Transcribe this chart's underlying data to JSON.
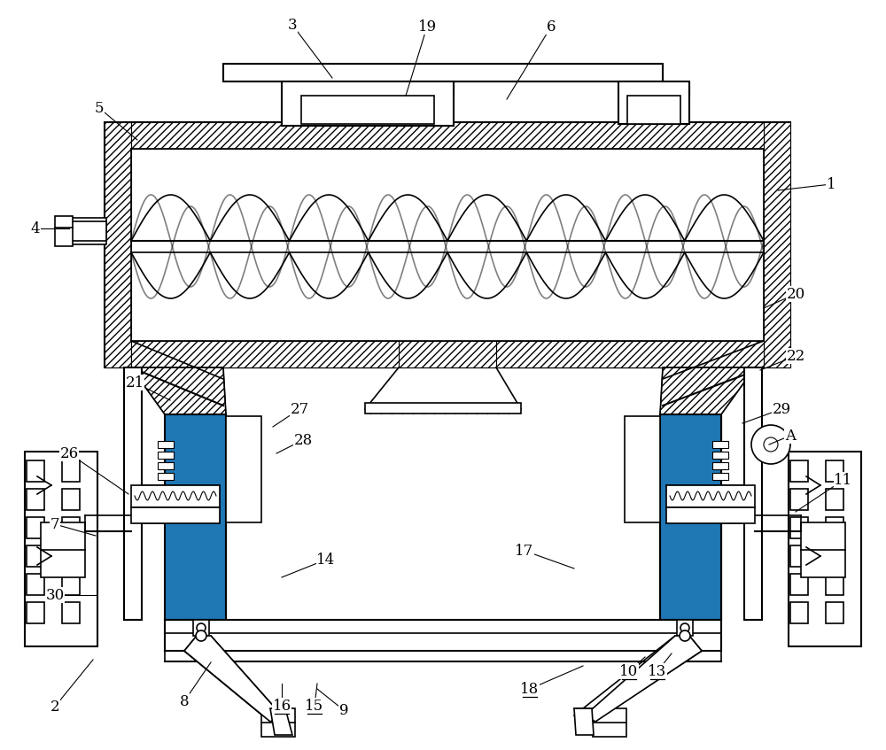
{
  "background_color": "#ffffff",
  "line_color": "#000000",
  "figsize": [
    10.0,
    8.47
  ],
  "dpi": 100,
  "labels_data": [
    [
      "1",
      938,
      208,
      878,
      215,
      false
    ],
    [
      "2",
      62,
      798,
      105,
      745,
      false
    ],
    [
      "3",
      330,
      28,
      375,
      88,
      false
    ],
    [
      "4",
      40,
      258,
      78,
      258,
      false
    ],
    [
      "5",
      112,
      122,
      155,
      158,
      false
    ],
    [
      "6",
      622,
      30,
      572,
      112,
      false
    ],
    [
      "7",
      62,
      592,
      108,
      605,
      false
    ],
    [
      "8",
      208,
      792,
      238,
      748,
      false
    ],
    [
      "9",
      388,
      802,
      358,
      778,
      false
    ],
    [
      "10",
      710,
      758,
      728,
      742,
      true
    ],
    [
      "11",
      952,
      542,
      898,
      578,
      false
    ],
    [
      "13",
      742,
      758,
      758,
      738,
      true
    ],
    [
      "14",
      368,
      632,
      318,
      652,
      false
    ],
    [
      "15",
      355,
      797,
      358,
      772,
      true
    ],
    [
      "16",
      318,
      797,
      318,
      772,
      true
    ],
    [
      "17",
      592,
      622,
      648,
      642,
      false
    ],
    [
      "18",
      598,
      778,
      658,
      752,
      true
    ],
    [
      "19",
      482,
      30,
      458,
      108,
      false
    ],
    [
      "20",
      898,
      332,
      862,
      348,
      false
    ],
    [
      "21",
      152,
      432,
      192,
      452,
      false
    ],
    [
      "22",
      898,
      402,
      858,
      418,
      false
    ],
    [
      "26",
      78,
      512,
      145,
      558,
      false
    ],
    [
      "27",
      338,
      462,
      308,
      482,
      false
    ],
    [
      "28",
      342,
      497,
      312,
      512,
      false
    ],
    [
      "29",
      882,
      462,
      838,
      478,
      false
    ],
    [
      "30",
      62,
      672,
      108,
      672,
      false
    ],
    [
      "A",
      892,
      492,
      868,
      502,
      false
    ]
  ]
}
